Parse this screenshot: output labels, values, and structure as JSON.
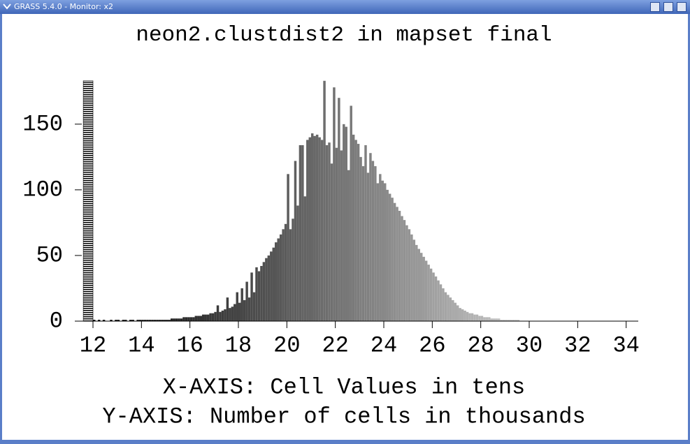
{
  "window": {
    "title": "GRASS 5.4.0 - Monitor: x2"
  },
  "chart_data": {
    "type": "histogram",
    "title": "neon2.clustdist2 in mapset final",
    "x_label": "X-AXIS: Cell Values in tens",
    "y_label": "Y-AXIS: Number of cells in thousands",
    "bins": [
      11.6,
      12,
      12.1,
      12.2,
      12.3,
      12.4,
      12.5,
      12.6,
      12.7,
      12.8,
      12.9,
      13,
      13.1,
      13.2,
      13.3,
      13.4,
      13.5,
      13.6,
      13.7,
      13.8,
      13.9,
      14,
      14.1,
      14.2,
      14.3,
      14.4,
      14.5,
      14.6,
      14.7,
      14.8,
      14.9,
      15,
      15.1,
      15.2,
      15.3,
      15.4,
      15.5,
      15.6,
      15.7,
      15.8,
      15.9,
      16,
      16.1,
      16.2,
      16.3,
      16.4,
      16.5,
      16.6,
      16.7,
      16.8,
      16.9,
      17,
      17.1,
      17.2,
      17.3,
      17.4,
      17.5,
      17.6,
      17.7,
      17.8,
      17.9,
      18,
      18.1,
      18.2,
      18.3,
      18.4,
      18.5,
      18.6,
      18.7,
      18.8,
      18.9,
      19,
      19.1,
      19.2,
      19.3,
      19.4,
      19.5,
      19.6,
      19.7,
      19.8,
      19.9,
      20,
      20.1,
      20.2,
      20.3,
      20.4,
      20.5,
      20.6,
      20.7,
      20.8,
      20.9,
      21,
      21.1,
      21.2,
      21.3,
      21.4,
      21.5,
      21.6,
      21.7,
      21.8,
      21.9,
      22,
      22.1,
      22.2,
      22.3,
      22.4,
      22.5,
      22.6,
      22.7,
      22.8,
      22.9,
      23,
      23.1,
      23.2,
      23.3,
      23.4,
      23.5,
      23.6,
      23.7,
      23.8,
      23.9,
      24,
      24.1,
      24.2,
      24.3,
      24.4,
      24.5,
      24.6,
      24.7,
      24.8,
      24.9,
      25,
      25.1,
      25.2,
      25.3,
      25.4,
      25.5,
      25.6,
      25.7,
      25.8,
      25.9,
      26,
      26.1,
      26.2,
      26.3,
      26.4,
      26.5,
      26.6,
      26.7,
      26.8,
      26.9,
      27,
      27.1,
      27.2,
      27.3,
      27.4,
      27.5,
      27.6,
      27.7,
      27.8,
      27.9,
      28,
      28.1,
      28.2,
      28.3,
      28.4,
      28.5,
      28.6,
      28.7,
      28.8,
      28.9,
      29,
      29.1,
      29.2,
      29.3,
      29.4,
      29.5,
      29.6,
      29.7,
      29.8,
      29.9,
      30
    ],
    "values": [
      183,
      1,
      0,
      1,
      0,
      1,
      0,
      0,
      1,
      0,
      1,
      1,
      0,
      1,
      1,
      0,
      1,
      1,
      0,
      1,
      1,
      1,
      1,
      1,
      1,
      1,
      1,
      1,
      1,
      1,
      1,
      1,
      1,
      2,
      2,
      2,
      2,
      2,
      3,
      3,
      3,
      3,
      3,
      4,
      4,
      4,
      5,
      5,
      5,
      6,
      6,
      7,
      12,
      7,
      8,
      9,
      18,
      10,
      11,
      13,
      22,
      14,
      25,
      16,
      30,
      18,
      37,
      22,
      41,
      38,
      42,
      45,
      48,
      50,
      53,
      56,
      60,
      63,
      66,
      70,
      74,
      112,
      70,
      78,
      122,
      88,
      134,
      134,
      95,
      138,
      140,
      143,
      141,
      142,
      140,
      138,
      183,
      134,
      136,
      120,
      178,
      132,
      170,
      130,
      150,
      148,
      115,
      164,
      142,
      138,
      135,
      125,
      118,
      134,
      113,
      128,
      122,
      118,
      105,
      112,
      107,
      105,
      100,
      97,
      94,
      90,
      87,
      84,
      80,
      77,
      73,
      70,
      66,
      62,
      58,
      55,
      52,
      49,
      46,
      43,
      40,
      37,
      34,
      31,
      28,
      25,
      22,
      20,
      18,
      16,
      14,
      12,
      10,
      9,
      8,
      7,
      6,
      6,
      5,
      5,
      4,
      4,
      3,
      3,
      3,
      2,
      2,
      2,
      2,
      1,
      1,
      1,
      1,
      1,
      1,
      1,
      1,
      0,
      0,
      0,
      0
    ],
    "color_range": [
      "#000000",
      "#cccccc"
    ],
    "hatched_bars": [
      0
    ],
    "xlim": [
      11.25,
      34.5
    ],
    "xticks": [
      12,
      14,
      16,
      18,
      20,
      22,
      24,
      26,
      28,
      30,
      32,
      34
    ],
    "ylim": [
      0,
      185
    ],
    "yticks": [
      0,
      50,
      100,
      150
    ],
    "grid": false
  }
}
